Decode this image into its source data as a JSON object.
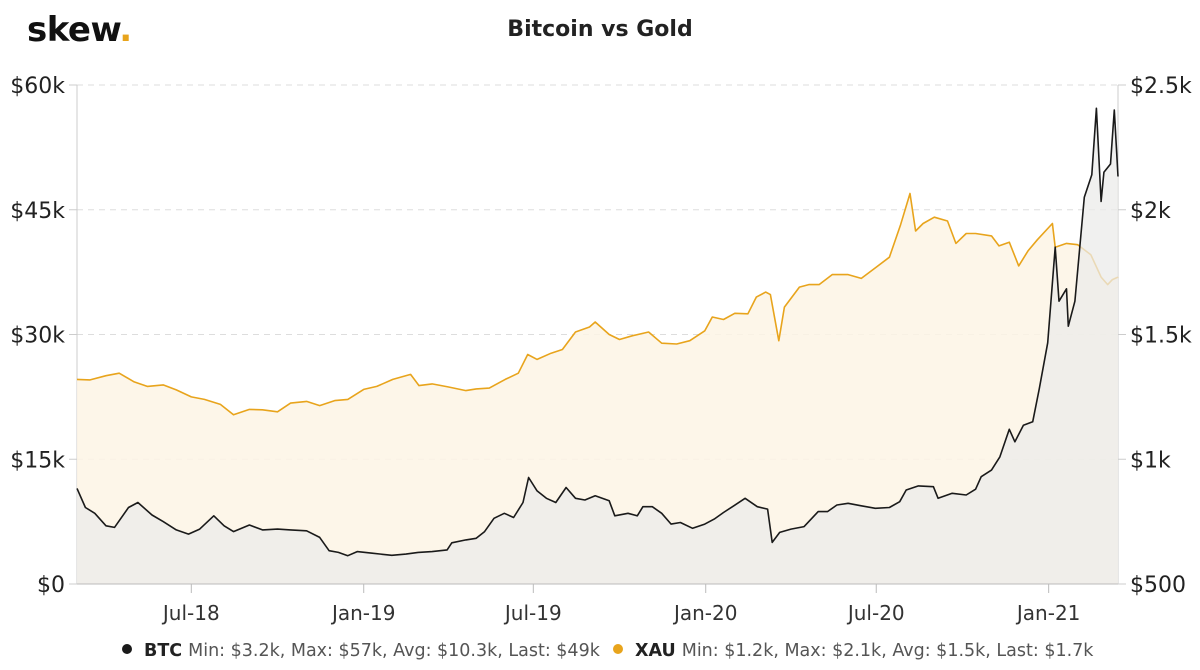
{
  "logo": {
    "text": "skew",
    "dot": "."
  },
  "chart_data": {
    "type": "line",
    "title": "Bitcoin vs Gold",
    "x_ticks": [
      "Jul-18",
      "Jan-19",
      "Jul-19",
      "Jan-20",
      "Jul-20",
      "Jan-21"
    ],
    "x_range": [
      "2018-03-01",
      "2021-03-16"
    ],
    "y_left": {
      "ticks": [
        "$0",
        "$15k",
        "$30k",
        "$45k",
        "$60k"
      ],
      "range": [
        0,
        60000
      ]
    },
    "y_right": {
      "ticks": [
        "$500",
        "$1k",
        "$1.5k",
        "$2k",
        "$2.5k"
      ],
      "range": [
        500,
        2500
      ]
    },
    "grid": "horizontal dashed",
    "legend_position": "bottom",
    "series": [
      {
        "name": "BTC",
        "axis": "left",
        "color": "#1a1a1a",
        "stats": "Min: $3.2k, Max: $57k, Avg: $10.3k, Last: $49k",
        "points": [
          [
            "2018-03-01",
            11500
          ],
          [
            "2018-03-10",
            9200
          ],
          [
            "2018-03-20",
            8500
          ],
          [
            "2018-04-01",
            7000
          ],
          [
            "2018-04-10",
            6800
          ],
          [
            "2018-04-25",
            9200
          ],
          [
            "2018-05-05",
            9800
          ],
          [
            "2018-05-20",
            8300
          ],
          [
            "2018-06-01",
            7500
          ],
          [
            "2018-06-15",
            6500
          ],
          [
            "2018-06-28",
            6000
          ],
          [
            "2018-07-10",
            6600
          ],
          [
            "2018-07-25",
            8200
          ],
          [
            "2018-08-05",
            7000
          ],
          [
            "2018-08-15",
            6300
          ],
          [
            "2018-09-01",
            7100
          ],
          [
            "2018-09-15",
            6500
          ],
          [
            "2018-10-01",
            6600
          ],
          [
            "2018-10-15",
            6500
          ],
          [
            "2018-11-01",
            6400
          ],
          [
            "2018-11-15",
            5600
          ],
          [
            "2018-11-25",
            4000
          ],
          [
            "2018-12-05",
            3800
          ],
          [
            "2018-12-15",
            3400
          ],
          [
            "2018-12-25",
            3900
          ],
          [
            "2019-01-10",
            3700
          ],
          [
            "2019-01-31",
            3450
          ],
          [
            "2019-02-15",
            3600
          ],
          [
            "2019-02-28",
            3800
          ],
          [
            "2019-03-15",
            3900
          ],
          [
            "2019-03-31",
            4100
          ],
          [
            "2019-04-05",
            4950
          ],
          [
            "2019-04-20",
            5300
          ],
          [
            "2019-05-01",
            5500
          ],
          [
            "2019-05-10",
            6300
          ],
          [
            "2019-05-20",
            7900
          ],
          [
            "2019-05-31",
            8500
          ],
          [
            "2019-06-10",
            8000
          ],
          [
            "2019-06-20",
            9800
          ],
          [
            "2019-06-26",
            12800
          ],
          [
            "2019-07-05",
            11200
          ],
          [
            "2019-07-15",
            10300
          ],
          [
            "2019-07-25",
            9800
          ],
          [
            "2019-08-05",
            11600
          ],
          [
            "2019-08-15",
            10300
          ],
          [
            "2019-08-25",
            10100
          ],
          [
            "2019-09-05",
            10600
          ],
          [
            "2019-09-20",
            10000
          ],
          [
            "2019-09-26",
            8200
          ],
          [
            "2019-10-10",
            8500
          ],
          [
            "2019-10-20",
            8200
          ],
          [
            "2019-10-26",
            9300
          ],
          [
            "2019-11-05",
            9300
          ],
          [
            "2019-11-15",
            8500
          ],
          [
            "2019-11-25",
            7200
          ],
          [
            "2019-12-05",
            7400
          ],
          [
            "2019-12-18",
            6700
          ],
          [
            "2019-12-31",
            7200
          ],
          [
            "2020-01-10",
            7800
          ],
          [
            "2020-01-20",
            8600
          ],
          [
            "2020-01-31",
            9400
          ],
          [
            "2020-02-12",
            10300
          ],
          [
            "2020-02-25",
            9300
          ],
          [
            "2020-03-07",
            9000
          ],
          [
            "2020-03-12",
            5000
          ],
          [
            "2020-03-20",
            6200
          ],
          [
            "2020-04-01",
            6600
          ],
          [
            "2020-04-15",
            6900
          ],
          [
            "2020-04-30",
            8700
          ],
          [
            "2020-05-10",
            8700
          ],
          [
            "2020-05-20",
            9500
          ],
          [
            "2020-06-01",
            9700
          ],
          [
            "2020-06-15",
            9400
          ],
          [
            "2020-06-30",
            9100
          ],
          [
            "2020-07-15",
            9200
          ],
          [
            "2020-07-26",
            9900
          ],
          [
            "2020-08-02",
            11300
          ],
          [
            "2020-08-15",
            11800
          ],
          [
            "2020-08-31",
            11700
          ],
          [
            "2020-09-05",
            10300
          ],
          [
            "2020-09-20",
            10900
          ],
          [
            "2020-10-05",
            10700
          ],
          [
            "2020-10-15",
            11400
          ],
          [
            "2020-10-21",
            12900
          ],
          [
            "2020-11-01",
            13700
          ],
          [
            "2020-11-10",
            15300
          ],
          [
            "2020-11-20",
            18600
          ],
          [
            "2020-11-26",
            17100
          ],
          [
            "2020-12-05",
            19100
          ],
          [
            "2020-12-15",
            19500
          ],
          [
            "2020-12-22",
            23500
          ],
          [
            "2020-12-31",
            29000
          ],
          [
            "2021-01-08",
            40500
          ],
          [
            "2021-01-12",
            34000
          ],
          [
            "2021-01-20",
            35500
          ],
          [
            "2021-01-22",
            31000
          ],
          [
            "2021-01-29",
            34000
          ],
          [
            "2021-02-08",
            46500
          ],
          [
            "2021-02-16",
            49200
          ],
          [
            "2021-02-21",
            57200
          ],
          [
            "2021-02-26",
            46000
          ],
          [
            "2021-03-01",
            49500
          ],
          [
            "2021-03-08",
            50500
          ],
          [
            "2021-03-12",
            57000
          ],
          [
            "2021-03-16",
            49000
          ]
        ]
      },
      {
        "name": "XAU",
        "axis": "right",
        "color": "#e8a41c",
        "stats": "Min: $1.2k, Max: $2.1k, Avg: $1.5k, Last: $1.7k",
        "points": [
          [
            "2018-03-01",
            1320
          ],
          [
            "2018-03-15",
            1318
          ],
          [
            "2018-04-01",
            1335
          ],
          [
            "2018-04-15",
            1345
          ],
          [
            "2018-05-01",
            1310
          ],
          [
            "2018-05-15",
            1292
          ],
          [
            "2018-06-01",
            1298
          ],
          [
            "2018-06-15",
            1278
          ],
          [
            "2018-07-01",
            1250
          ],
          [
            "2018-07-15",
            1240
          ],
          [
            "2018-08-01",
            1220
          ],
          [
            "2018-08-15",
            1178
          ],
          [
            "2018-09-01",
            1200
          ],
          [
            "2018-09-15",
            1198
          ],
          [
            "2018-10-01",
            1190
          ],
          [
            "2018-10-15",
            1225
          ],
          [
            "2018-11-01",
            1232
          ],
          [
            "2018-11-15",
            1215
          ],
          [
            "2018-12-01",
            1235
          ],
          [
            "2018-12-15",
            1240
          ],
          [
            "2019-01-01",
            1280
          ],
          [
            "2019-01-15",
            1292
          ],
          [
            "2019-02-01",
            1320
          ],
          [
            "2019-02-20",
            1340
          ],
          [
            "2019-03-01",
            1295
          ],
          [
            "2019-03-15",
            1302
          ],
          [
            "2019-04-01",
            1290
          ],
          [
            "2019-04-20",
            1275
          ],
          [
            "2019-05-01",
            1282
          ],
          [
            "2019-05-15",
            1285
          ],
          [
            "2019-06-01",
            1320
          ],
          [
            "2019-06-15",
            1345
          ],
          [
            "2019-06-25",
            1420
          ],
          [
            "2019-07-05",
            1400
          ],
          [
            "2019-07-20",
            1425
          ],
          [
            "2019-08-01",
            1440
          ],
          [
            "2019-08-15",
            1510
          ],
          [
            "2019-08-30",
            1530
          ],
          [
            "2019-09-05",
            1550
          ],
          [
            "2019-09-20",
            1500
          ],
          [
            "2019-10-01",
            1480
          ],
          [
            "2019-10-15",
            1495
          ],
          [
            "2019-11-01",
            1510
          ],
          [
            "2019-11-15",
            1465
          ],
          [
            "2019-12-01",
            1462
          ],
          [
            "2019-12-15",
            1475
          ],
          [
            "2019-12-31",
            1515
          ],
          [
            "2020-01-08",
            1570
          ],
          [
            "2020-01-20",
            1560
          ],
          [
            "2020-02-01",
            1585
          ],
          [
            "2020-02-15",
            1583
          ],
          [
            "2020-02-24",
            1650
          ],
          [
            "2020-03-05",
            1670
          ],
          [
            "2020-03-10",
            1660
          ],
          [
            "2020-03-19",
            1475
          ],
          [
            "2020-03-25",
            1610
          ],
          [
            "2020-04-10",
            1690
          ],
          [
            "2020-04-20",
            1700
          ],
          [
            "2020-05-01",
            1700
          ],
          [
            "2020-05-15",
            1740
          ],
          [
            "2020-06-01",
            1740
          ],
          [
            "2020-06-15",
            1725
          ],
          [
            "2020-07-01",
            1770
          ],
          [
            "2020-07-15",
            1810
          ],
          [
            "2020-07-27",
            1940
          ],
          [
            "2020-08-06",
            2065
          ],
          [
            "2020-08-12",
            1915
          ],
          [
            "2020-08-20",
            1945
          ],
          [
            "2020-09-01",
            1970
          ],
          [
            "2020-09-15",
            1955
          ],
          [
            "2020-09-24",
            1865
          ],
          [
            "2020-10-05",
            1905
          ],
          [
            "2020-10-15",
            1905
          ],
          [
            "2020-11-01",
            1895
          ],
          [
            "2020-11-09",
            1855
          ],
          [
            "2020-11-20",
            1870
          ],
          [
            "2020-11-30",
            1775
          ],
          [
            "2020-12-10",
            1835
          ],
          [
            "2020-12-20",
            1880
          ],
          [
            "2021-01-05",
            1945
          ],
          [
            "2021-01-08",
            1850
          ],
          [
            "2021-01-20",
            1865
          ],
          [
            "2021-02-01",
            1860
          ],
          [
            "2021-02-15",
            1820
          ],
          [
            "2021-02-26",
            1730
          ],
          [
            "2021-03-05",
            1700
          ],
          [
            "2021-03-10",
            1720
          ],
          [
            "2021-03-16",
            1730
          ]
        ]
      }
    ]
  }
}
